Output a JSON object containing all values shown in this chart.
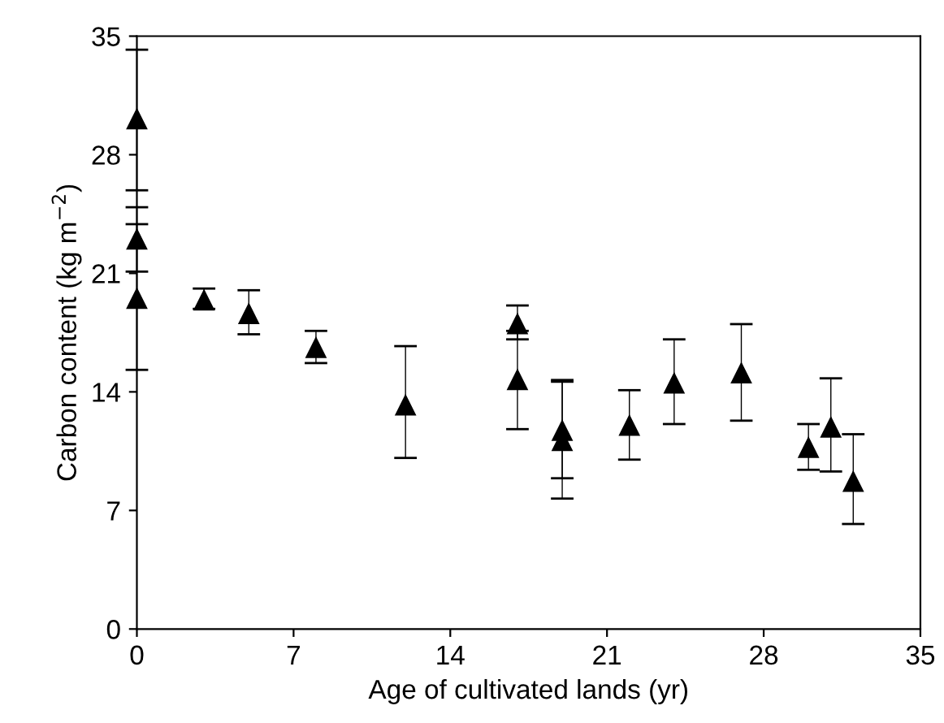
{
  "chart_data": {
    "type": "scatter",
    "xlabel": "Age of cultivated lands (yr)",
    "ylabel": "Carbon content (kg m$^{−2}$)",
    "x": [
      0,
      0,
      0,
      3,
      5,
      8,
      12,
      17,
      17,
      19,
      19,
      22,
      24,
      27,
      30,
      31,
      32
    ],
    "values": [
      30.1,
      23.0,
      19.5,
      19.4,
      18.6,
      16.6,
      13.2,
      18.0,
      14.7,
      11.7,
      11.1,
      12.0,
      14.5,
      15.1,
      10.7,
      11.9,
      8.7
    ],
    "errors": [
      [
        25.9,
        34.2
      ],
      [
        21.1,
        23.9
      ],
      [
        15.3,
        24.9
      ],
      [
        18.9,
        20.1
      ],
      [
        17.4,
        20.0
      ],
      [
        15.7,
        17.6
      ],
      [
        10.1,
        16.7
      ],
      [
        17.1,
        19.1
      ],
      [
        11.8,
        17.6
      ],
      [
        8.9,
        14.7
      ],
      [
        7.7,
        14.6
      ],
      [
        10.0,
        14.1
      ],
      [
        12.1,
        17.1
      ],
      [
        12.3,
        18.0
      ],
      [
        9.4,
        12.1
      ],
      [
        9.3,
        14.8
      ],
      [
        6.2,
        11.5
      ]
    ],
    "color": "#000000",
    "marker": "triangle",
    "xlim": [
      0,
      35
    ],
    "ylim": [
      0,
      35
    ],
    "xticks": [
      0,
      7,
      14,
      21,
      28,
      35
    ],
    "yticks": [
      0,
      7,
      14,
      21,
      28,
      35
    ],
    "grid": false,
    "legend": false
  }
}
